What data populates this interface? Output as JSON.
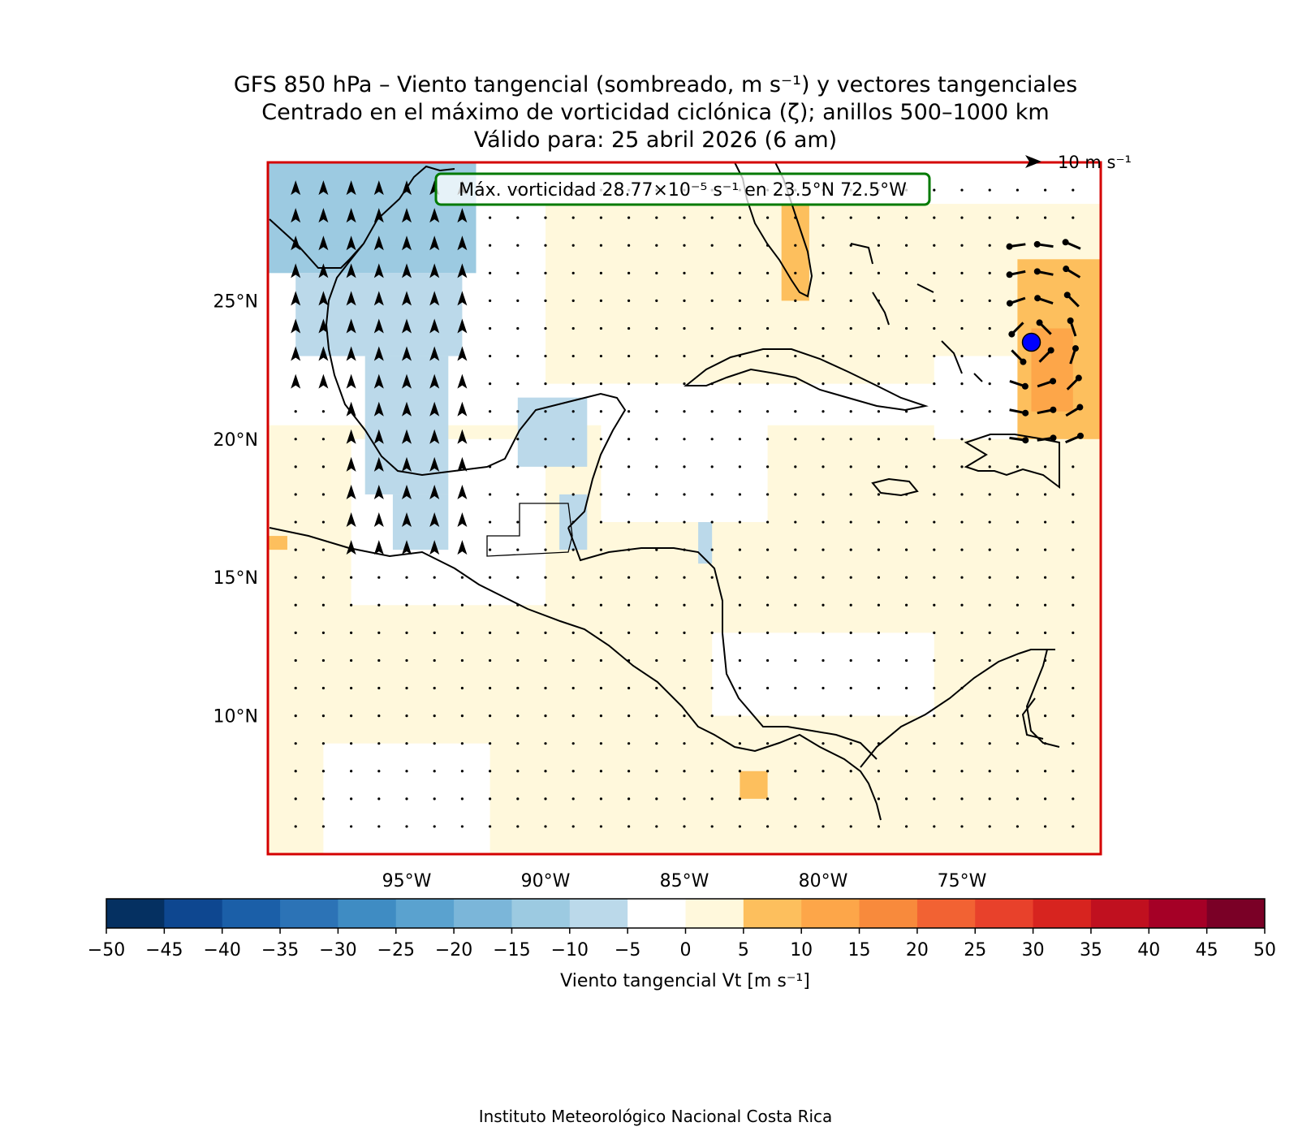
{
  "title": {
    "line1": "GFS 850 hPa – Viento tangencial (sombreado, m s⁻¹) y vectores tangenciales",
    "line2": "Centrado en el máximo de vorticidad ciclónica (ζ); anillos 500–1000 km",
    "line3": "Válido para: 25 abril 2026 (6 am)"
  },
  "annotation": "Máx. vorticidad 28.77×10⁻⁵ s⁻¹ en 23.5°N 72.5°W",
  "reference_vector": "10 m s⁻¹",
  "map": {
    "lon_range": [
      -100,
      -70
    ],
    "lat_range": [
      5,
      30
    ],
    "lat_ticks": [
      {
        "value": 25,
        "label": "25°N"
      },
      {
        "value": 20,
        "label": "20°N"
      },
      {
        "value": 15,
        "label": "15°N"
      },
      {
        "value": 10,
        "label": "10°N"
      }
    ],
    "lon_ticks": [
      {
        "value": -95,
        "label": "95°W"
      },
      {
        "value": -90,
        "label": "90°W"
      },
      {
        "value": -85,
        "label": "85°W"
      },
      {
        "value": -80,
        "label": "80°W"
      },
      {
        "value": -75,
        "label": "75°W"
      }
    ],
    "center": {
      "lat": 23.5,
      "lon": -72.5,
      "color": "#0000ff"
    },
    "frame_color": "#d40000",
    "annotation_border_color": "#007a00"
  },
  "colorbar": {
    "label": "Viento tangencial Vt [m s⁻¹]",
    "ticks": [
      "−50",
      "−45",
      "−40",
      "−35",
      "−30",
      "−25",
      "−20",
      "−15",
      "−10",
      "−5",
      "0",
      "5",
      "10",
      "15",
      "20",
      "25",
      "30",
      "35",
      "40",
      "45",
      "50"
    ],
    "colors": [
      "#053061",
      "#0e4790",
      "#1b5fa8",
      "#2c73b6",
      "#3f8cc3",
      "#5aa2cf",
      "#7bb6d9",
      "#9ccae1",
      "#bbd9ea",
      "#ffffff",
      "#fff8dc",
      "#fdbf5d",
      "#fda649",
      "#f88a3c",
      "#f26233",
      "#e8412b",
      "#d7241f",
      "#c0101f",
      "#a50026",
      "#7a0026"
    ]
  },
  "credit": "Instituto Meteorológico Nacional Costa Rica"
}
